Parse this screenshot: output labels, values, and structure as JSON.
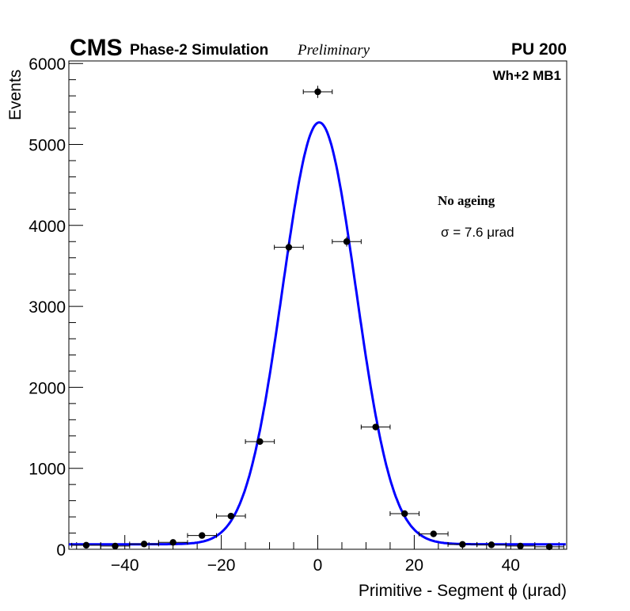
{
  "chart_data": {
    "type": "scatter",
    "header": {
      "experiment": "CMS",
      "subtitle": "Phase-2 Simulation",
      "status": "Preliminary",
      "pileup": "PU 200"
    },
    "annotations": {
      "chamber": "Wh+2 MB1",
      "condition": "No ageing",
      "sigma": "σ = 7.6  μrad"
    },
    "xlabel": "Primitive - Segment ϕ (μrad)",
    "ylabel": "Events",
    "xlim": [
      -51.6,
      51.6
    ],
    "ylim": [
      0,
      6050
    ],
    "xticks": [
      -40,
      -20,
      0,
      20,
      40
    ],
    "xtick_labels": [
      "−40",
      "−20",
      "0",
      "20",
      "40"
    ],
    "yticks": [
      0,
      1000,
      2000,
      3000,
      4000,
      5000,
      6000
    ],
    "ytick_labels": [
      "0",
      "1000",
      "2000",
      "3000",
      "4000",
      "5000",
      "6000"
    ],
    "bin_half_width": 3,
    "x": [
      -48,
      -42,
      -36,
      -30,
      -24,
      -18,
      -12,
      -6,
      0,
      6,
      12,
      18,
      24,
      30,
      36,
      42,
      48
    ],
    "values": [
      50,
      40,
      65,
      85,
      170,
      410,
      1330,
      3730,
      5650,
      3800,
      1510,
      440,
      190,
      60,
      55,
      40,
      30
    ],
    "fit": {
      "type": "gaussian+constant",
      "amplitude": 5210,
      "mean": 0.3,
      "sigma": 7.6,
      "constant": 62,
      "color": "#0000ff"
    },
    "marker_color": "#000000",
    "grid": false
  }
}
